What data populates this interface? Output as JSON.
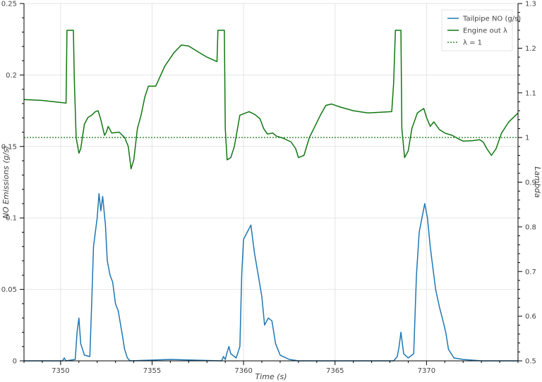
{
  "chart_data": {
    "type": "line",
    "title": "",
    "xlabel": "Time (s)",
    "ylabel_left": "NO Emissions (g/s)",
    "ylabel_right": "Lambda",
    "xlim": [
      7348,
      7375
    ],
    "ylim_left": [
      0,
      0.25
    ],
    "ylim_right": [
      0.5,
      1.3
    ],
    "x_ticks": [
      7350,
      7355,
      7360,
      7365,
      7370
    ],
    "y_left_ticks": [
      0,
      0.05,
      0.1,
      0.15,
      0.2,
      0.25
    ],
    "y_right_ticks": [
      0.5,
      0.6,
      0.7,
      0.8,
      0.9,
      1,
      1.1,
      1.2,
      1.3
    ],
    "grid": true,
    "legend_position": "top-right",
    "series": [
      {
        "name": "Tailpipe NO (g/s)",
        "axis": "left",
        "color": "#1f77b4",
        "style": "solid",
        "points": [
          [
            7348,
            0.0
          ],
          [
            7350.1,
            0.0
          ],
          [
            7350.2,
            0.002
          ],
          [
            7350.3,
            0.0
          ],
          [
            7350.8,
            0.001
          ],
          [
            7350.9,
            0.02
          ],
          [
            7351.0,
            0.03
          ],
          [
            7351.1,
            0.012
          ],
          [
            7351.3,
            0.004
          ],
          [
            7351.6,
            0.003
          ],
          [
            7351.7,
            0.04
          ],
          [
            7351.8,
            0.08
          ],
          [
            7351.9,
            0.09
          ],
          [
            7352.0,
            0.1
          ],
          [
            7352.1,
            0.117
          ],
          [
            7352.2,
            0.105
          ],
          [
            7352.3,
            0.115
          ],
          [
            7352.45,
            0.095
          ],
          [
            7352.55,
            0.07
          ],
          [
            7352.7,
            0.06
          ],
          [
            7352.85,
            0.055
          ],
          [
            7353.0,
            0.04
          ],
          [
            7353.15,
            0.035
          ],
          [
            7353.35,
            0.02
          ],
          [
            7353.5,
            0.008
          ],
          [
            7353.65,
            0.002
          ],
          [
            7353.8,
            0.0
          ],
          [
            7356.0,
            0.001
          ],
          [
            7358.8,
            0.0
          ],
          [
            7358.9,
            0.003
          ],
          [
            7359.0,
            0.001
          ],
          [
            7359.1,
            0.006
          ],
          [
            7359.2,
            0.01
          ],
          [
            7359.3,
            0.005
          ],
          [
            7359.6,
            0.002
          ],
          [
            7359.8,
            0.01
          ],
          [
            7359.9,
            0.06
          ],
          [
            7360.0,
            0.085
          ],
          [
            7360.2,
            0.09
          ],
          [
            7360.4,
            0.095
          ],
          [
            7360.6,
            0.075
          ],
          [
            7360.8,
            0.06
          ],
          [
            7361.0,
            0.045
          ],
          [
            7361.15,
            0.025
          ],
          [
            7361.35,
            0.03
          ],
          [
            7361.55,
            0.028
          ],
          [
            7361.75,
            0.012
          ],
          [
            7362.0,
            0.004
          ],
          [
            7362.5,
            0.001
          ],
          [
            7363.0,
            0.0
          ],
          [
            7368.2,
            0.0
          ],
          [
            7368.4,
            0.003
          ],
          [
            7368.5,
            0.01
          ],
          [
            7368.6,
            0.02
          ],
          [
            7368.75,
            0.005
          ],
          [
            7369.0,
            0.002
          ],
          [
            7369.3,
            0.005
          ],
          [
            7369.45,
            0.06
          ],
          [
            7369.6,
            0.09
          ],
          [
            7369.75,
            0.1
          ],
          [
            7369.9,
            0.11
          ],
          [
            7370.05,
            0.1
          ],
          [
            7370.2,
            0.08
          ],
          [
            7370.35,
            0.065
          ],
          [
            7370.5,
            0.05
          ],
          [
            7370.7,
            0.038
          ],
          [
            7370.9,
            0.028
          ],
          [
            7371.05,
            0.02
          ],
          [
            7371.2,
            0.008
          ],
          [
            7371.5,
            0.002
          ],
          [
            7372.0,
            0.001
          ],
          [
            7373.0,
            0.0
          ],
          [
            7375,
            0.0
          ]
        ]
      },
      {
        "name": "Engine out λ",
        "axis": "right",
        "color": "#117711",
        "style": "solid",
        "points": [
          [
            7348,
            1.085
          ],
          [
            7349.0,
            1.083
          ],
          [
            7350.3,
            1.077
          ],
          [
            7350.35,
            1.24
          ],
          [
            7350.7,
            1.24
          ],
          [
            7350.75,
            1.13
          ],
          [
            7350.85,
            1.0
          ],
          [
            7351.0,
            0.965
          ],
          [
            7351.1,
            0.975
          ],
          [
            7351.3,
            1.03
          ],
          [
            7351.5,
            1.045
          ],
          [
            7351.7,
            1.05
          ],
          [
            7351.9,
            1.058
          ],
          [
            7352.05,
            1.06
          ],
          [
            7352.2,
            1.04
          ],
          [
            7352.4,
            1.005
          ],
          [
            7352.5,
            1.012
          ],
          [
            7352.6,
            1.025
          ],
          [
            7352.8,
            1.01
          ],
          [
            7353.2,
            1.012
          ],
          [
            7353.5,
            1.0
          ],
          [
            7353.7,
            0.98
          ],
          [
            7353.85,
            0.93
          ],
          [
            7354.0,
            0.95
          ],
          [
            7354.2,
            1.02
          ],
          [
            7354.4,
            1.05
          ],
          [
            7354.6,
            1.09
          ],
          [
            7354.8,
            1.115
          ],
          [
            7355.2,
            1.115
          ],
          [
            7355.7,
            1.16
          ],
          [
            7356.2,
            1.19
          ],
          [
            7356.6,
            1.207
          ],
          [
            7357.0,
            1.205
          ],
          [
            7357.5,
            1.192
          ],
          [
            7358.0,
            1.18
          ],
          [
            7358.55,
            1.17
          ],
          [
            7358.6,
            1.24
          ],
          [
            7358.95,
            1.24
          ],
          [
            7359.0,
            1.02
          ],
          [
            7359.1,
            0.95
          ],
          [
            7359.3,
            0.955
          ],
          [
            7359.5,
            0.98
          ],
          [
            7359.8,
            1.05
          ],
          [
            7360.3,
            1.058
          ],
          [
            7360.6,
            1.052
          ],
          [
            7360.9,
            1.042
          ],
          [
            7361.1,
            1.02
          ],
          [
            7361.3,
            1.008
          ],
          [
            7361.6,
            1.01
          ],
          [
            7361.8,
            1.003
          ],
          [
            7362.2,
            0.998
          ],
          [
            7362.6,
            0.99
          ],
          [
            7362.85,
            0.975
          ],
          [
            7363.0,
            0.955
          ],
          [
            7363.3,
            0.96
          ],
          [
            7363.6,
            1.0
          ],
          [
            7363.9,
            1.025
          ],
          [
            7364.2,
            1.05
          ],
          [
            7364.5,
            1.072
          ],
          [
            7364.8,
            1.075
          ],
          [
            7365.3,
            1.068
          ],
          [
            7366.0,
            1.06
          ],
          [
            7366.8,
            1.055
          ],
          [
            7368.1,
            1.058
          ],
          [
            7368.2,
            1.12
          ],
          [
            7368.3,
            1.24
          ],
          [
            7368.6,
            1.24
          ],
          [
            7368.65,
            1.02
          ],
          [
            7368.8,
            0.955
          ],
          [
            7369.0,
            0.97
          ],
          [
            7369.2,
            1.02
          ],
          [
            7369.5,
            1.055
          ],
          [
            7369.85,
            1.065
          ],
          [
            7370.0,
            1.045
          ],
          [
            7370.2,
            1.025
          ],
          [
            7370.4,
            1.035
          ],
          [
            7370.7,
            1.018
          ],
          [
            7371.0,
            1.01
          ],
          [
            7371.4,
            1.005
          ],
          [
            7371.7,
            0.998
          ],
          [
            7372.0,
            0.992
          ],
          [
            7372.5,
            0.993
          ],
          [
            7372.9,
            0.995
          ],
          [
            7373.1,
            0.99
          ],
          [
            7373.3,
            0.975
          ],
          [
            7373.55,
            0.96
          ],
          [
            7373.8,
            0.975
          ],
          [
            7374.1,
            1.01
          ],
          [
            7374.5,
            1.035
          ],
          [
            7375,
            1.055
          ]
        ]
      },
      {
        "name": "λ = 1",
        "axis": "right",
        "color": "#117711",
        "style": "dotted",
        "points": [
          [
            7348,
            1.0
          ],
          [
            7375,
            1.0
          ]
        ]
      }
    ]
  }
}
